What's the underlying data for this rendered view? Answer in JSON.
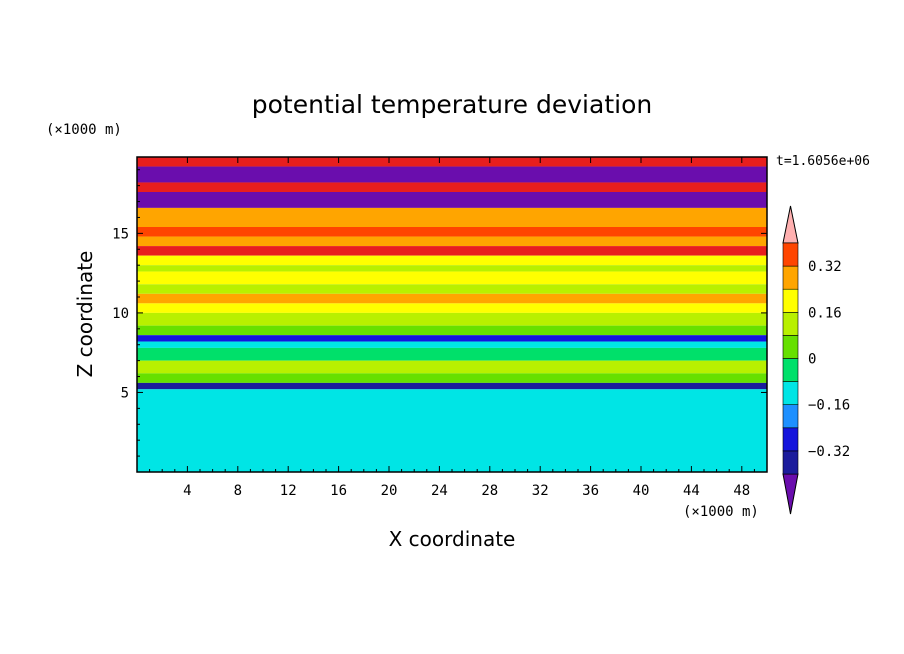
{
  "chart_data": {
    "type": "heatmap",
    "title": "potential temperature deviation",
    "xlabel": "X coordinate",
    "ylabel": "Z coordinate",
    "x_unit": "(×1000 m)",
    "y_unit": "(×1000 m)",
    "time_label": "t=1.6056e+06",
    "xlim": [
      0,
      50
    ],
    "ylim": [
      0,
      19.8
    ],
    "x_ticks": [
      "4",
      "8",
      "12",
      "16",
      "20",
      "24",
      "28",
      "32",
      "36",
      "40",
      "44",
      "48"
    ],
    "y_ticks": [
      "5",
      "10",
      "15"
    ],
    "colorbar": {
      "labels": [
        "0.32",
        "0.16",
        "0",
        "−0.16",
        "−0.32"
      ],
      "levels": [
        -0.4,
        -0.32,
        -0.24,
        -0.16,
        -0.08,
        0,
        0.08,
        0.16,
        0.24,
        0.32,
        0.4
      ],
      "colors": [
        "#6a0dad",
        "#1c1c9c",
        "#1414dc",
        "#1e90ff",
        "#00e5e5",
        "#00e06a",
        "#66e000",
        "#b8f000",
        "#ffff00",
        "#ffa500",
        "#ff4500",
        "#e81e1e",
        "#ffb0b0"
      ],
      "extend": "both"
    },
    "bands": [
      {
        "z": [
          19.2,
          19.8
        ],
        "value": 0.45
      },
      {
        "z": [
          18.2,
          19.2
        ],
        "value": -0.45
      },
      {
        "z": [
          17.6,
          18.2
        ],
        "value": 0.45
      },
      {
        "z": [
          16.6,
          17.6
        ],
        "value": -0.45
      },
      {
        "z": [
          15.4,
          16.6
        ],
        "value": 0.3
      },
      {
        "z": [
          14.8,
          15.4
        ],
        "value": 0.36
      },
      {
        "z": [
          14.2,
          14.8
        ],
        "value": 0.25
      },
      {
        "z": [
          13.6,
          14.2
        ],
        "value": 0.45
      },
      {
        "z": [
          13.0,
          13.6
        ],
        "value": 0.2
      },
      {
        "z": [
          12.6,
          13.0
        ],
        "value": 0.12
      },
      {
        "z": [
          11.8,
          12.6
        ],
        "value": 0.2
      },
      {
        "z": [
          11.2,
          11.8
        ],
        "value": 0.12
      },
      {
        "z": [
          10.6,
          11.2
        ],
        "value": 0.24
      },
      {
        "z": [
          10.0,
          10.6
        ],
        "value": 0.18
      },
      {
        "z": [
          9.2,
          10.0
        ],
        "value": 0.1
      },
      {
        "z": [
          8.6,
          9.2
        ],
        "value": 0.04
      },
      {
        "z": [
          8.2,
          8.6
        ],
        "value": -0.3
      },
      {
        "z": [
          7.8,
          8.2
        ],
        "value": -0.1
      },
      {
        "z": [
          7.0,
          7.8
        ],
        "value": -0.05
      },
      {
        "z": [
          6.2,
          7.0
        ],
        "value": 0.08
      },
      {
        "z": [
          5.6,
          6.2
        ],
        "value": 0.05
      },
      {
        "z": [
          5.2,
          5.6
        ],
        "value": -0.36
      },
      {
        "z": [
          0.0,
          5.2
        ],
        "value": -0.1
      }
    ]
  }
}
